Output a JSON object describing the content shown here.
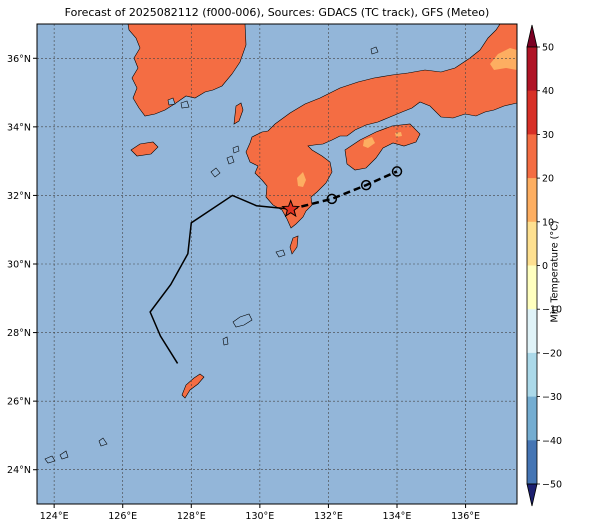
{
  "title": "Forecast of 2025082112 (f000-006), Sources: GDACS (TC track), GFS (Meteo)",
  "map": {
    "ocean_color": "#93b6d9",
    "lon_range": [
      123.5,
      137.5
    ],
    "lat_range": [
      23.0,
      37.0
    ],
    "lon_ticks": [
      {
        "v": 124,
        "t": "124°E"
      },
      {
        "v": 126,
        "t": "126°E"
      },
      {
        "v": 128,
        "t": "128°E"
      },
      {
        "v": 130,
        "t": "130°E"
      },
      {
        "v": 132,
        "t": "132°E"
      },
      {
        "v": 134,
        "t": "134°E"
      },
      {
        "v": 136,
        "t": "136°E"
      }
    ],
    "lat_ticks": [
      {
        "v": 24,
        "t": "24°N"
      },
      {
        "v": 26,
        "t": "26°N"
      },
      {
        "v": 28,
        "t": "28°N"
      },
      {
        "v": 30,
        "t": "30°N"
      },
      {
        "v": 32,
        "t": "32°N"
      },
      {
        "v": 34,
        "t": "34°N"
      },
      {
        "v": 36,
        "t": "36°N"
      }
    ],
    "gridlines": true
  },
  "track": {
    "past": [
      [
        127.6,
        27.1
      ],
      [
        127.1,
        27.9
      ],
      [
        126.8,
        28.6
      ],
      [
        127.4,
        29.4
      ],
      [
        127.9,
        30.3
      ],
      [
        128.0,
        31.2
      ],
      [
        129.2,
        32.0
      ],
      [
        129.9,
        31.7
      ],
      [
        130.9,
        31.6
      ]
    ],
    "current": [
      130.9,
      31.6
    ],
    "forecast": [
      [
        130.9,
        31.6
      ],
      [
        132.1,
        31.9
      ],
      [
        133.1,
        32.3
      ],
      [
        134.0,
        32.7
      ]
    ]
  },
  "colorbar": {
    "label": "Min Temperature (°C)",
    "ticks": [
      "50",
      "40",
      "30",
      "20",
      "10",
      "0",
      "−10",
      "−20",
      "−30",
      "−40",
      "−50"
    ],
    "colors": [
      "#7b0023",
      "#b01426",
      "#d73027",
      "#f46d43",
      "#fdae61",
      "#fee090",
      "#ffffbf",
      "#e0f3f8",
      "#abd9e9",
      "#74add1",
      "#4575b4",
      "#313695",
      "#1c2070"
    ]
  }
}
